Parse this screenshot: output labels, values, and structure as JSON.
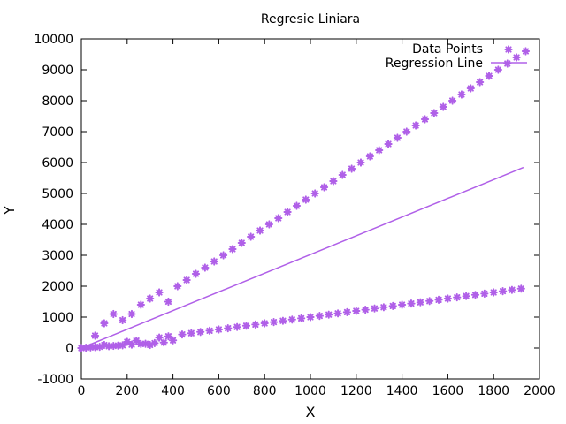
{
  "chart_data": {
    "type": "scatter",
    "title": "Regresie Liniara",
    "xlabel": "X",
    "ylabel": "Y",
    "xlim": [
      0,
      2000
    ],
    "ylim": [
      -1000,
      10000
    ],
    "xticks": [
      "0",
      "200",
      "400",
      "600",
      "800",
      "1000",
      "1200",
      "1400",
      "1600",
      "1800",
      "2000"
    ],
    "yticks": [
      "-1000",
      "0",
      "1000",
      "2000",
      "3000",
      "4000",
      "5000",
      "6000",
      "7000",
      "8000",
      "9000",
      "10000"
    ],
    "grid": false,
    "legend_position": "top-right",
    "color": "#b060e8",
    "series": [
      {
        "name": "Data Points",
        "kind": "points",
        "x": [
          0,
          20,
          40,
          60,
          80,
          100,
          120,
          140,
          160,
          180,
          200,
          220,
          240,
          260,
          280,
          300,
          320,
          340,
          360,
          380,
          400,
          440,
          480,
          520,
          560,
          600,
          640,
          680,
          720,
          760,
          800,
          840,
          880,
          920,
          960,
          1000,
          1040,
          1080,
          1120,
          1160,
          1200,
          1240,
          1280,
          1320,
          1360,
          1400,
          1440,
          1480,
          1520,
          1560,
          1600,
          1640,
          1680,
          1720,
          1760,
          1800,
          1840,
          1880,
          1920,
          0,
          60,
          100,
          140,
          180,
          220,
          260,
          300,
          340,
          380,
          420,
          460,
          500,
          540,
          580,
          620,
          660,
          700,
          740,
          780,
          820,
          860,
          900,
          940,
          980,
          1020,
          1060,
          1100,
          1140,
          1180,
          1220,
          1260,
          1300,
          1340,
          1380,
          1420,
          1460,
          1500,
          1540,
          1580,
          1620,
          1660,
          1700,
          1740,
          1780,
          1820,
          1860,
          1900,
          1940
        ],
        "y": [
          0,
          10,
          20,
          30,
          40,
          100,
          60,
          70,
          80,
          90,
          200,
          110,
          240,
          130,
          140,
          100,
          160,
          340,
          180,
          380,
          250,
          440,
          480,
          520,
          560,
          600,
          640,
          680,
          720,
          760,
          800,
          840,
          880,
          920,
          960,
          1000,
          1040,
          1080,
          1120,
          1160,
          1200,
          1240,
          1280,
          1320,
          1360,
          1400,
          1440,
          1480,
          1520,
          1560,
          1600,
          1640,
          1680,
          1720,
          1760,
          1800,
          1840,
          1880,
          1920,
          0,
          400,
          800,
          1100,
          900,
          1100,
          1400,
          1600,
          1800,
          1500,
          2000,
          2200,
          2400,
          2600,
          2800,
          3000,
          3200,
          3400,
          3600,
          3800,
          4000,
          4200,
          4400,
          4600,
          4800,
          5000,
          5200,
          5400,
          5600,
          5800,
          6000,
          6200,
          6400,
          6600,
          6800,
          7000,
          7200,
          7400,
          7600,
          7800,
          8000,
          8200,
          8400,
          8600,
          8800,
          9000,
          9200,
          9400,
          9600
        ]
      },
      {
        "name": "Regression Line",
        "kind": "line",
        "x": [
          0,
          1930
        ],
        "y": [
          0,
          5840
        ]
      }
    ]
  }
}
